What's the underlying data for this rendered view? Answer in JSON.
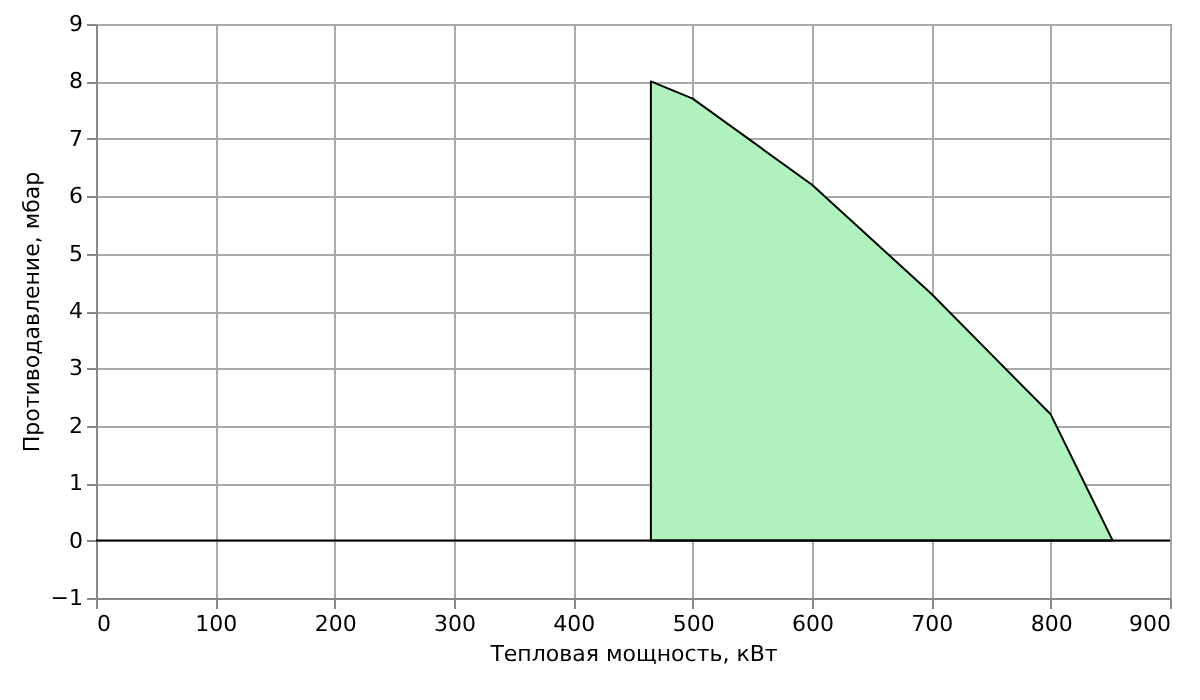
{
  "chart_data": {
    "type": "area",
    "xlabel": "Тепловая мощность, кВт",
    "ylabel": "Противодавление, мбар",
    "x": [
      465,
      500,
      600,
      700,
      800,
      852
    ],
    "series": [
      {
        "color": "#b0f2bd",
        "values": [
          8,
          7.7,
          6.2,
          4.3,
          2.2,
          0
        ]
      }
    ],
    "xlim": [
      0,
      900
    ],
    "xticks": [
      0,
      100,
      200,
      300,
      400,
      500,
      600,
      700,
      800,
      900
    ],
    "ylim": [
      -1,
      9
    ],
    "yticks": [
      -1,
      0,
      1,
      2,
      3,
      4,
      5,
      6,
      7,
      8,
      9
    ],
    "ref_lines": [
      {
        "axis": "y",
        "value": 0,
        "color": "#000000"
      }
    ],
    "grid": true
  }
}
